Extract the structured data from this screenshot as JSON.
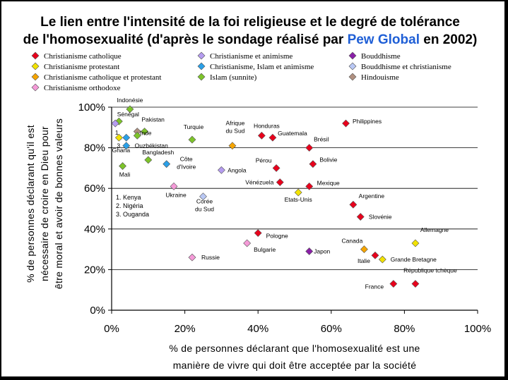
{
  "title": {
    "line1": "Le lien entre l'intensité de la foi religieuse et le degré de tolérance",
    "line2_a": "de l'homosexualité",
    "line2_b": " (d'après le sondage réalisé par ",
    "line2_highlight": "Pew Global",
    "line2_c": " en 2002)"
  },
  "legend": [
    {
      "label": "Christianisme catholique",
      "color": "#e8001c"
    },
    {
      "label": "Christianisme protestant",
      "color": "#f2e200"
    },
    {
      "label": "Christianisme catholique et protestant",
      "color": "#f5a400"
    },
    {
      "label": "Christianisme orthodoxe",
      "color": "#f59ad8"
    },
    {
      "label": "Christianisme et animisme",
      "color": "#b59cf0"
    },
    {
      "label": "Christianisme, Islam et animisme",
      "color": "#2aa0e8"
    },
    {
      "label": "Islam (sunnite)",
      "color": "#7dc42a"
    },
    {
      "label": "Bouddhisme",
      "color": "#8a1fa8"
    },
    {
      "label": "Bouddhisme et christianisme",
      "color": "#b9c8f5"
    },
    {
      "label": "Hindouisme",
      "color": "#b09080"
    }
  ],
  "numbered_note": [
    "1. Kenya",
    "2. Nigéria",
    "3. Ouganda"
  ],
  "chart_data": {
    "type": "scatter",
    "xlabel": [
      "% de personnes déclarant que l'homosexualité est une",
      "manière de vivre qui doit être acceptée par la société"
    ],
    "ylabel": [
      "% de personnes déclarant qu'il est",
      "nécessaire de croire en Dieu pour",
      "être moral et avoir de bonnes valeurs"
    ],
    "xlim": [
      0,
      100
    ],
    "ylim": [
      0,
      100
    ],
    "xticks": [
      "0%",
      "20%",
      "40%",
      "60%",
      "80%",
      "100%"
    ],
    "yticks": [
      "0%",
      "20%",
      "40%",
      "60%",
      "80%",
      "100%"
    ],
    "points": [
      {
        "label": "Indonésie",
        "x": 5,
        "y": 99,
        "group": 6
      },
      {
        "label": "Sénégal",
        "x": 2,
        "y": 93,
        "group": 6
      },
      {
        "label": "Pakistan",
        "x": 9,
        "y": 88,
        "group": 6
      },
      {
        "label": "Inde",
        "x": 7,
        "y": 88,
        "group": 9
      },
      {
        "label": "Ouzbékistan",
        "x": 7,
        "y": 86,
        "group": 6
      },
      {
        "label": "Turquie",
        "x": 22,
        "y": 84,
        "group": 6
      },
      {
        "label": "Mali",
        "x": 3,
        "y": 71,
        "group": 6
      },
      {
        "label": "Bangladesh",
        "x": 10,
        "y": 74,
        "group": 6
      },
      {
        "label": "Côte d'Ivoire",
        "x": 15,
        "y": 72,
        "group": 5
      },
      {
        "label": "1",
        "x": 1,
        "y": 92,
        "group": 4
      },
      {
        "label": "2",
        "x": 4,
        "y": 85,
        "group": 5
      },
      {
        "label": "3",
        "x": 4,
        "y": 81,
        "group": 5
      },
      {
        "label": "Ghana",
        "x": 2,
        "y": 85,
        "group": 1
      },
      {
        "label": "Afrique du Sud",
        "x": 33,
        "y": 81,
        "group": 2
      },
      {
        "label": "Angola",
        "x": 30,
        "y": 69,
        "group": 4
      },
      {
        "label": "Ukraine",
        "x": 17,
        "y": 61,
        "group": 3
      },
      {
        "label": "Corée du Sud",
        "x": 25,
        "y": 56,
        "group": 8
      },
      {
        "label": "Honduras",
        "x": 41,
        "y": 86,
        "group": 0
      },
      {
        "label": "Guatemala",
        "x": 44,
        "y": 85,
        "group": 0
      },
      {
        "label": "Brésil",
        "x": 54,
        "y": 80,
        "group": 0
      },
      {
        "label": "Philippines",
        "x": 64,
        "y": 92,
        "group": 0
      },
      {
        "label": "Pérou",
        "x": 45,
        "y": 70,
        "group": 0
      },
      {
        "label": "Bolivie",
        "x": 55,
        "y": 72,
        "group": 0
      },
      {
        "label": "Vénézuela",
        "x": 46,
        "y": 63,
        "group": 0
      },
      {
        "label": "Mexique",
        "x": 54,
        "y": 61,
        "group": 0
      },
      {
        "label": "Etats-Unis",
        "x": 51,
        "y": 58,
        "group": 1
      },
      {
        "label": "Argentine",
        "x": 66,
        "y": 52,
        "group": 0
      },
      {
        "label": "Slovénie",
        "x": 68,
        "y": 46,
        "group": 0
      },
      {
        "label": "Pologne",
        "x": 40,
        "y": 38,
        "group": 0
      },
      {
        "label": "Bulgarie",
        "x": 37,
        "y": 33,
        "group": 3
      },
      {
        "label": "Russie",
        "x": 22,
        "y": 26,
        "group": 3
      },
      {
        "label": "Japon",
        "x": 54,
        "y": 29,
        "group": 7
      },
      {
        "label": "Canada",
        "x": 69,
        "y": 30,
        "group": 2
      },
      {
        "label": "Italie",
        "x": 72,
        "y": 27,
        "group": 0
      },
      {
        "label": "Grande Bretagne",
        "x": 74,
        "y": 25,
        "group": 1
      },
      {
        "label": "Allemagne",
        "x": 83,
        "y": 33,
        "group": 1
      },
      {
        "label": "France",
        "x": 77,
        "y": 13,
        "group": 0
      },
      {
        "label": "République tchèque",
        "x": 83,
        "y": 13,
        "group": 0
      }
    ]
  }
}
